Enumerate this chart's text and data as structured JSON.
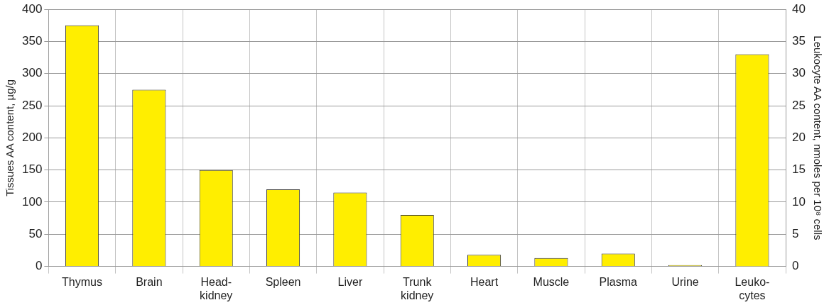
{
  "chart_data": {
    "type": "bar",
    "ylabel": "Tissues AA content, µg/g",
    "y2label": "Leukocyte AA content, nmoles per 10⁸ cells",
    "categories": [
      "Thymus",
      "Brain",
      "Head-kidney",
      "Spleen",
      "Liver",
      "Trunk kidney",
      "Heart",
      "Muscle",
      "Plasma",
      "Urine",
      "Leuko-cytes"
    ],
    "series": [
      {
        "color": "#ffee00",
        "values": [
          375,
          275,
          150,
          120,
          115,
          80,
          18,
          13,
          20,
          2,
          null
        ]
      },
      {
        "color": "#ffee00",
        "axis": "y2",
        "values": [
          null,
          null,
          null,
          null,
          null,
          null,
          null,
          null,
          null,
          null,
          33
        ]
      }
    ],
    "ylim": [
      0,
      400
    ],
    "yticks": [
      0,
      50,
      100,
      150,
      200,
      250,
      300,
      350,
      400
    ],
    "y2lim": [
      0,
      40
    ],
    "y2ticks": [
      0,
      5,
      10,
      15,
      20,
      25,
      30,
      35,
      40
    ],
    "grid": true,
    "legend": false
  }
}
